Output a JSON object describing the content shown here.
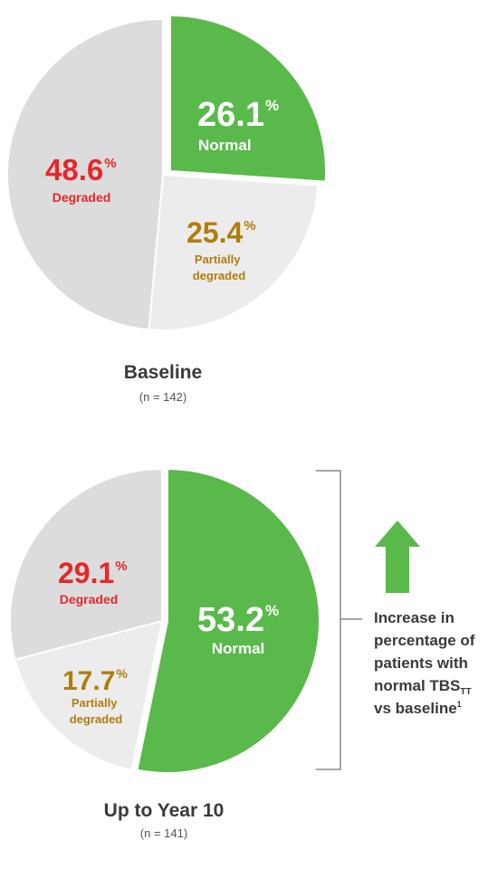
{
  "colors": {
    "normal": "#59b94a",
    "partially_degraded": "#ececec",
    "degraded": "#dcdcdc",
    "degraded_text": "#e8262b",
    "partially_text": "#b07d0c",
    "normal_text": "#ffffff",
    "arrow": "#59b94a",
    "bracket": "#8a8a8a"
  },
  "chart_data": [
    {
      "type": "pie",
      "title": "Baseline",
      "subtitle": "(n = 142)",
      "slices": [
        {
          "key": "normal",
          "label": "Normal",
          "value": 26.1,
          "value_text": "26.1",
          "unit": "%"
        },
        {
          "key": "partially_degraded",
          "label": "Partially degraded",
          "value": 25.4,
          "value_text": "25.4",
          "unit": "%"
        },
        {
          "key": "degraded",
          "label": "Degraded",
          "value": 48.6,
          "value_text": "48.6",
          "unit": "%"
        }
      ]
    },
    {
      "type": "pie",
      "title": "Up to Year 10",
      "subtitle": "(n = 141)",
      "slices": [
        {
          "key": "normal",
          "label": "Normal",
          "value": 53.2,
          "value_text": "53.2",
          "unit": "%"
        },
        {
          "key": "partially_degraded",
          "label": "Partially degraded",
          "value": 17.7,
          "value_text": "17.7",
          "unit": "%"
        },
        {
          "key": "degraded",
          "label": "Degraded",
          "value": 29.1,
          "value_text": "29.1",
          "unit": "%"
        }
      ]
    }
  ],
  "callout": {
    "icon": "up-arrow-icon",
    "lines": [
      "Increase in",
      "percentage of",
      "patients with",
      "normal TBS",
      "vs baseline"
    ],
    "tbs_subscript": "TT",
    "footnote_mark": "1"
  }
}
